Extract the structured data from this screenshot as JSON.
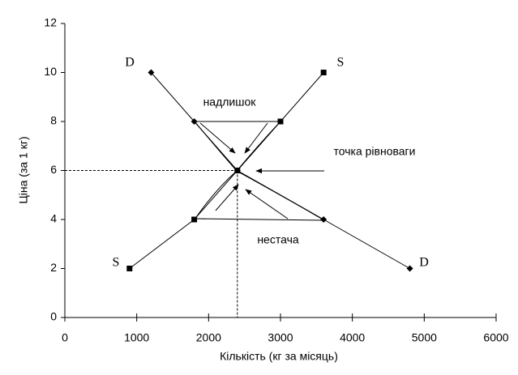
{
  "chart_data": {
    "type": "line",
    "xlabel": "Кількість (кг за місяць)",
    "ylabel": "Ціна (за 1 кг)",
    "xlim": [
      0,
      6000
    ],
    "xticks": [
      0,
      1000,
      2000,
      3000,
      4000,
      5000,
      6000
    ],
    "ylim": [
      0,
      12
    ],
    "yticks": [
      0,
      2,
      4,
      6,
      8,
      10,
      12
    ],
    "series": [
      {
        "name": "D",
        "color": "#000000",
        "marker": "diamond",
        "x": [
          1200,
          1800,
          2400,
          3600,
          4800
        ],
        "values": [
          10,
          8,
          6,
          4,
          2
        ]
      },
      {
        "name": "S",
        "color": "#000000",
        "marker": "square",
        "x": [
          900,
          1800,
          2400,
          3000,
          3600
        ],
        "values": [
          2,
          4,
          6,
          8,
          10
        ]
      }
    ],
    "annotations": [
      "надлишок",
      "точка рівноваги",
      "нестача"
    ]
  }
}
